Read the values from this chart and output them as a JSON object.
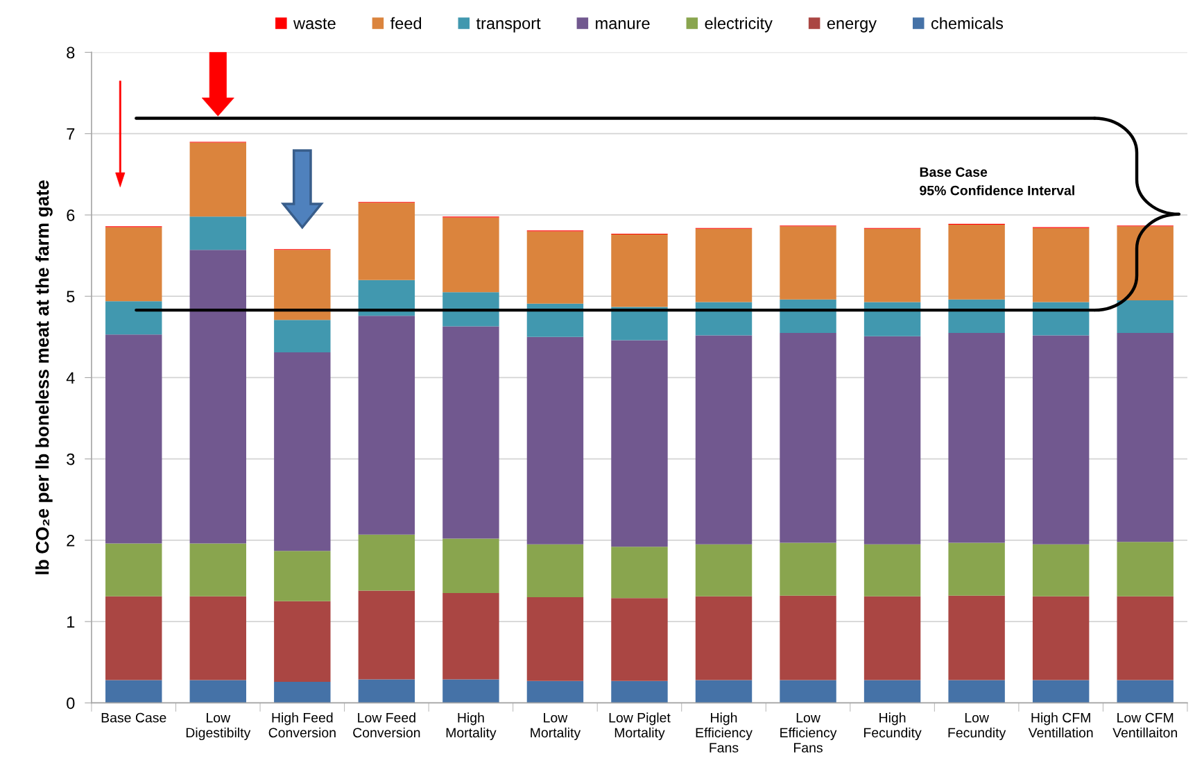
{
  "chart_data": {
    "type": "bar",
    "stacked": true,
    "ylabel": "lb CO₂e per lb boneless meat at the farm gate",
    "categories": [
      "Base Case",
      "Low\nDigestibilty",
      "High Feed\nConversion",
      "Low Feed\nConversion",
      "High\nMortality",
      "Low\nMortality",
      "Low Piglet\nMortality",
      "High\nEfficiency\nFans",
      "Low\nEfficiency\nFans",
      "High\nFecundity",
      "Low\nFecundity",
      "High CFM\nVentillation",
      "Low CFM\nVentillaiton"
    ],
    "series": [
      {
        "name": "chemicals",
        "color": "#4572a7",
        "values": [
          0.28,
          0.28,
          0.26,
          0.29,
          0.29,
          0.27,
          0.27,
          0.28,
          0.28,
          0.28,
          0.28,
          0.28,
          0.28
        ]
      },
      {
        "name": "energy",
        "color": "#aa4643",
        "values": [
          1.03,
          1.03,
          0.99,
          1.09,
          1.06,
          1.03,
          1.02,
          1.03,
          1.04,
          1.03,
          1.04,
          1.03,
          1.03
        ]
      },
      {
        "name": "electricity",
        "color": "#89a54e",
        "values": [
          0.65,
          0.65,
          0.62,
          0.69,
          0.67,
          0.65,
          0.63,
          0.64,
          0.65,
          0.64,
          0.65,
          0.64,
          0.67
        ]
      },
      {
        "name": "manure",
        "color": "#71588f",
        "values": [
          2.57,
          3.61,
          2.44,
          2.69,
          2.61,
          2.55,
          2.54,
          2.57,
          2.58,
          2.56,
          2.58,
          2.57,
          2.57
        ]
      },
      {
        "name": "transport",
        "color": "#4198af",
        "values": [
          0.41,
          0.41,
          0.4,
          0.44,
          0.42,
          0.41,
          0.41,
          0.41,
          0.41,
          0.42,
          0.41,
          0.41,
          0.4
        ]
      },
      {
        "name": "feed",
        "color": "#db843d",
        "values": [
          0.91,
          0.91,
          0.86,
          0.95,
          0.92,
          0.89,
          0.89,
          0.9,
          0.9,
          0.9,
          0.92,
          0.91,
          0.91
        ]
      },
      {
        "name": "waste",
        "color": "#ff0000",
        "values": [
          0.01,
          0.01,
          0.01,
          0.01,
          0.01,
          0.01,
          0.01,
          0.01,
          0.01,
          0.01,
          0.01,
          0.01,
          0.01
        ]
      }
    ],
    "ylim": [
      0,
      8
    ],
    "yticks": [
      0,
      1,
      2,
      3,
      4,
      5,
      6,
      7,
      8
    ],
    "grid": "y",
    "legend": "top",
    "ref_lines": [
      {
        "axis": "y",
        "value": 7.19,
        "color": "#000000"
      },
      {
        "axis": "y",
        "value": 4.83,
        "color": "#000000"
      }
    ],
    "annotations": [
      "Base Case\n95% Confidence Interval"
    ]
  }
}
